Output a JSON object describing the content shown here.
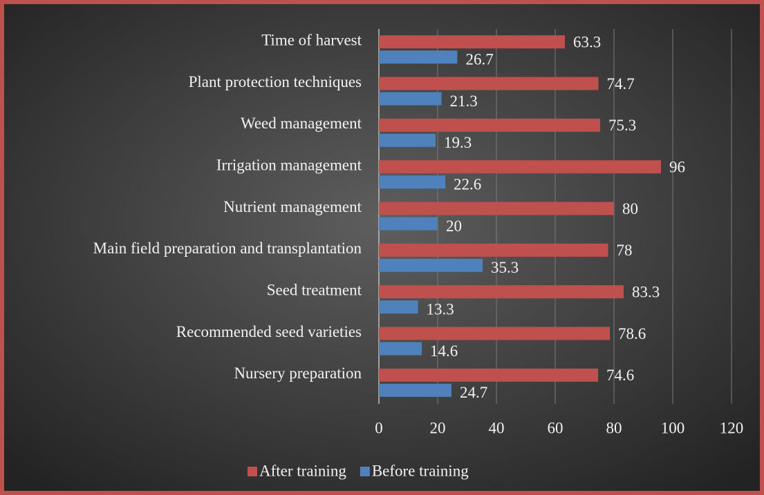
{
  "chart_data": {
    "type": "bar",
    "orientation": "horizontal",
    "categories": [
      "Time of harvest",
      "Plant protection techniques",
      "Weed management",
      "Irrigation management",
      "Nutrient management",
      "Main field preparation and transplantation",
      "Seed treatment",
      "Recommended seed varieties",
      "Nursery preparation"
    ],
    "series": [
      {
        "name": "After training",
        "color": "#c0504d",
        "values": [
          63.3,
          74.7,
          75.3,
          96,
          80,
          78,
          83.3,
          78.6,
          74.6
        ]
      },
      {
        "name": "Before training",
        "color": "#4f81bd",
        "values": [
          26.7,
          21.3,
          19.3,
          22.6,
          20,
          35.3,
          13.3,
          14.6,
          24.7
        ]
      }
    ],
    "xlim": [
      0,
      120
    ],
    "xticks": [
      0,
      20,
      40,
      60,
      80,
      100,
      120
    ],
    "grid": true,
    "legend": "bottom"
  }
}
